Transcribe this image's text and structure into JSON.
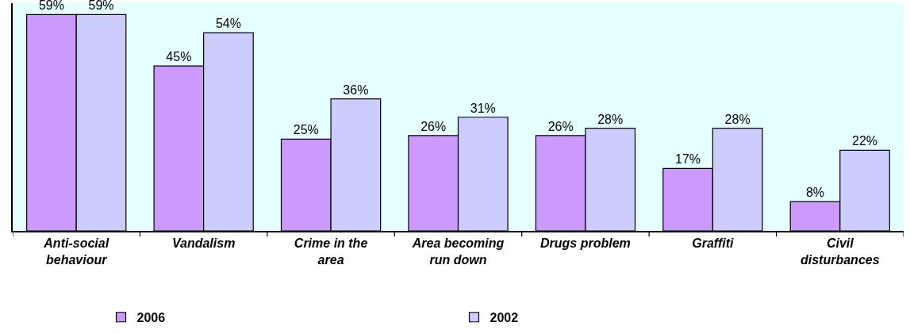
{
  "chart_data": {
    "type": "bar",
    "categories": [
      "Anti-social behaviour",
      "Vandalism",
      "Crime in the area",
      "Area becoming run down",
      "Drugs problem",
      "Graffiti",
      "Civil disturbances"
    ],
    "series": [
      {
        "name": "2006",
        "color": "#cc99ff",
        "values": [
          59,
          45,
          25,
          26,
          26,
          17,
          8
        ],
        "value_labels": [
          "59%",
          "45%",
          "25%",
          "26%",
          "26%",
          "17%",
          "8%"
        ]
      },
      {
        "name": "2002",
        "color": "#ccccff",
        "values": [
          59,
          54,
          36,
          31,
          28,
          28,
          22
        ],
        "value_labels": [
          "59%",
          "54%",
          "36%",
          "31%",
          "28%",
          "28%",
          "22%"
        ]
      }
    ],
    "legend": "bottom",
    "grid": false
  }
}
